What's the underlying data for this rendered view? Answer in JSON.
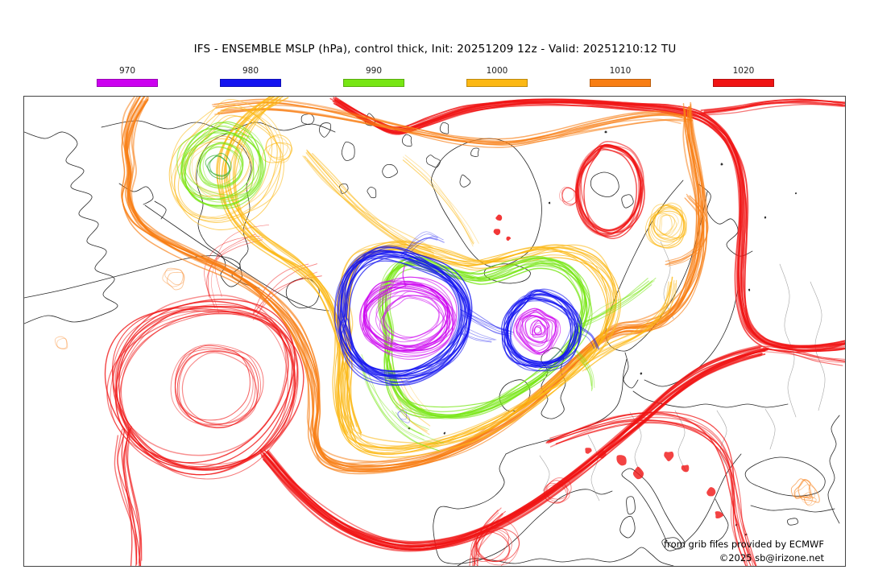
{
  "page": {
    "background": "#ffffff"
  },
  "header": {
    "title": "IFS - ENSEMBLE MSLP (hPa), control thick, Init: 20251209 12z - Valid: 20251210:12 TU"
  },
  "legend": {
    "items": [
      {
        "label": "970",
        "color": "#cc00f0"
      },
      {
        "label": "980",
        "color": "#1414f0"
      },
      {
        "label": "990",
        "color": "#77e614"
      },
      {
        "label": "1000",
        "color": "#fcb814"
      },
      {
        "label": "1010",
        "color": "#f87e14"
      },
      {
        "label": "1020",
        "color": "#f01414"
      }
    ]
  },
  "map": {
    "colors": {
      "coastline": "#1b1b1b",
      "borders": "#9a9a9a",
      "frame": "#444444",
      "inner_green": "#2fae2f"
    },
    "credits": {
      "line1": "from grib files provided by ECMWF",
      "line2": "©2025 sb@irizone.net"
    }
  },
  "chart_data": {
    "type": "contour-ensemble-spaghetti-map",
    "model": "IFS",
    "field": "ENSEMBLE MSLP (hPa), control thick",
    "init": "20251209 12z",
    "valid": "20251210:12 TU",
    "region": "North America - North Atlantic - Europe (polar stereographic view)",
    "levels_hpa": [
      970,
      980,
      990,
      1000,
      1010,
      1020
    ],
    "level_colors": {
      "970": "#cc00f0",
      "980": "#1414f0",
      "990": "#77e614",
      "1000": "#fcb814",
      "1010": "#f87e14",
      "1020": "#f01414"
    },
    "ensemble": "all ensemble members drawn as thin overlapping lines (spaghetti), control member thick",
    "features": [
      {
        "name": "deep-low-west",
        "level_hpa": 970,
        "desc": "Large closed 970 hPa center over the central North Atlantic south of Greenland"
      },
      {
        "name": "deep-low-east",
        "level_hpa": 970,
        "desc": "Tight secondary 970 hPa vortex just west of Ireland"
      },
      {
        "name": "saddle",
        "level_hpa": 980,
        "desc": "980 hPa contour encircles both low centers in a figure-eight"
      },
      {
        "name": "canada-990-cell",
        "level_hpa": 990,
        "desc": "Closed 990 hPa low near Hudson Bay"
      },
      {
        "name": "norway-sea-1000-cell",
        "level_hpa": 1000,
        "desc": "Small closed 1000 hPa cell over the Barents/Norwegian Sea"
      },
      {
        "name": "svalbard-1020-cell",
        "level_hpa": 1020,
        "desc": "Closed 1020 hPa high cell near Svalbard"
      },
      {
        "name": "azores-high-edge",
        "level_hpa": 1020,
        "desc": "Broad 1020 hPa band over the subtropical Atlantic with a closed loop west of the Azores and a branch across central Europe"
      }
    ]
  }
}
